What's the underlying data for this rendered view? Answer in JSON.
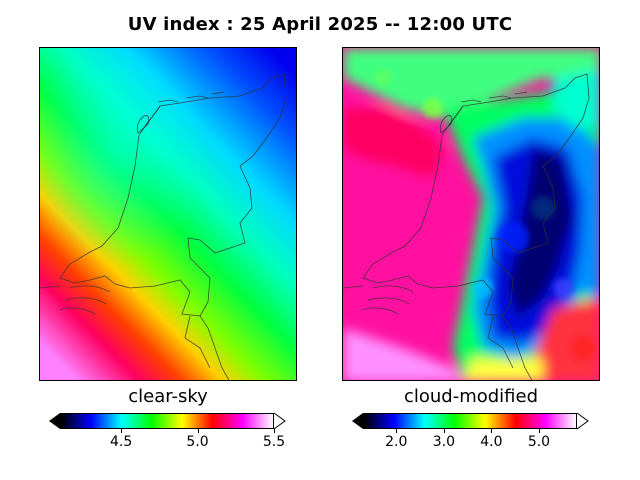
{
  "title": "UV index :  25 April 2025  --  12:00 UTC",
  "panels": [
    {
      "label": "clear-sky",
      "colorbar": {
        "ticks": [
          "4.5",
          "5.0",
          "5.5"
        ],
        "range": [
          4.1,
          5.5
        ]
      }
    },
    {
      "label": "cloud-modified",
      "colorbar": {
        "ticks": [
          "2.0",
          "3.0",
          "4.0",
          "5.0"
        ],
        "range": [
          1.3,
          5.8
        ]
      }
    }
  ],
  "colormap": [
    "#000000",
    "#0000ff",
    "#00ffff",
    "#00ff00",
    "#ffff00",
    "#ff0000",
    "#ff00ff",
    "#ffffff"
  ]
}
